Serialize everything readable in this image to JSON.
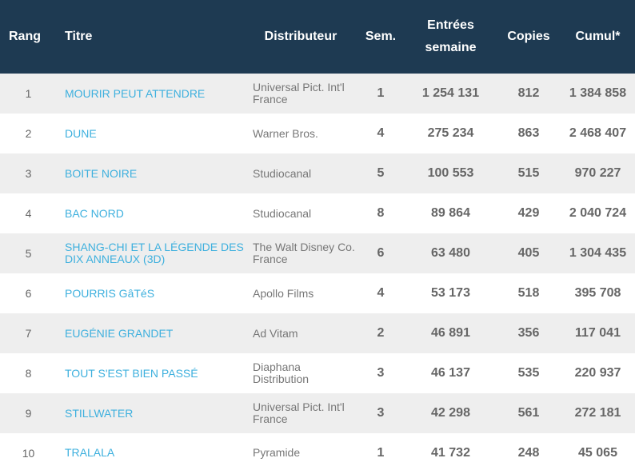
{
  "header": {
    "rank": "Rang",
    "title": "Titre",
    "distributor": "Distributeur",
    "weeks": "Sem.",
    "entries_line1": "Entrées",
    "entries_line2": "semaine",
    "copies": "Copies",
    "cumul": "Cumul*"
  },
  "rows": [
    {
      "rank": "1",
      "title": "MOURIR PEUT ATTENDRE",
      "distributor": "Universal Pict. Int'l France",
      "weeks": "1",
      "entries": "1 254 131",
      "copies": "812",
      "cumul": "1 384 858"
    },
    {
      "rank": "2",
      "title": "DUNE",
      "distributor": "Warner Bros.",
      "weeks": "4",
      "entries": "275 234",
      "copies": "863",
      "cumul": "2 468 407"
    },
    {
      "rank": "3",
      "title": "BOITE NOIRE",
      "distributor": "Studiocanal",
      "weeks": "5",
      "entries": "100 553",
      "copies": "515",
      "cumul": "970 227"
    },
    {
      "rank": "4",
      "title": "BAC NORD",
      "distributor": "Studiocanal",
      "weeks": "8",
      "entries": "89 864",
      "copies": "429",
      "cumul": "2 040 724"
    },
    {
      "rank": "5",
      "title": "SHANG-CHI ET LA LÉGENDE DES DIX ANNEAUX (3D)",
      "distributor": "The Walt Disney Co. France",
      "weeks": "6",
      "entries": "63 480",
      "copies": "405",
      "cumul": "1 304 435"
    },
    {
      "rank": "6",
      "title": "POURRIS GâTéS",
      "distributor": "Apollo Films",
      "weeks": "4",
      "entries": "53 173",
      "copies": "518",
      "cumul": "395 708"
    },
    {
      "rank": "7",
      "title": "EUGÉNIE GRANDET",
      "distributor": "Ad Vitam",
      "weeks": "2",
      "entries": "46 891",
      "copies": "356",
      "cumul": "117 041"
    },
    {
      "rank": "8",
      "title": "TOUT S'EST BIEN PASSÉ",
      "distributor": "Diaphana Distribution",
      "weeks": "3",
      "entries": "46 137",
      "copies": "535",
      "cumul": "220 937"
    },
    {
      "rank": "9",
      "title": "STILLWATER",
      "distributor": "Universal Pict. Int'l France",
      "weeks": "3",
      "entries": "42 298",
      "copies": "561",
      "cumul": "272 181"
    },
    {
      "rank": "10",
      "title": "TRALALA",
      "distributor": "Pyramide",
      "weeks": "1",
      "entries": "41 732",
      "copies": "248",
      "cumul": "45 065"
    }
  ]
}
